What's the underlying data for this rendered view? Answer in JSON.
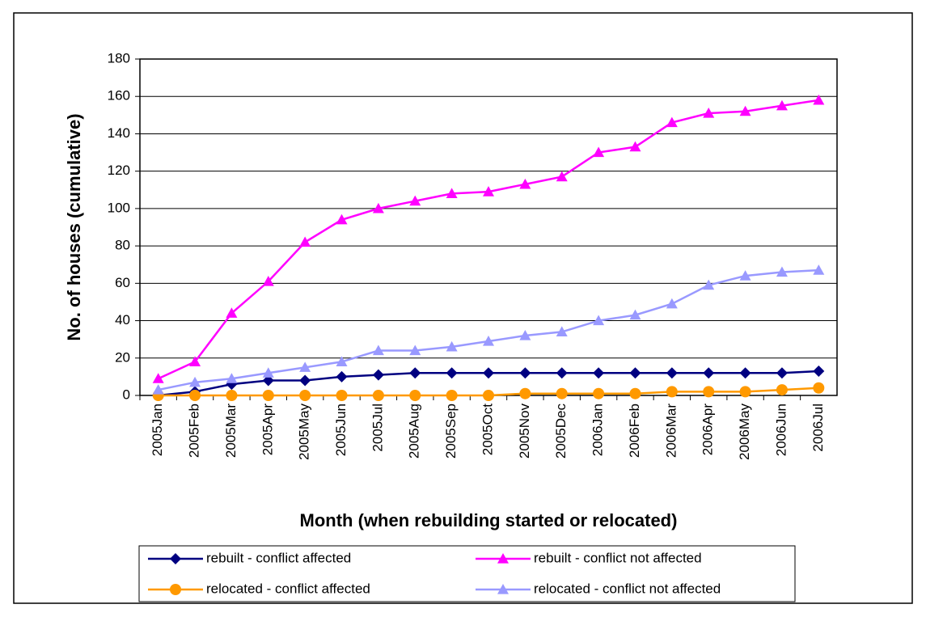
{
  "chart_data": {
    "type": "line",
    "x_label": "Month (when rebuilding started or relocated)",
    "y_label": "No. of houses (cumulative)",
    "categories": [
      "2005Jan",
      "2005Feb",
      "2005Mar",
      "2005Apr",
      "2005May",
      "2005Jun",
      "2005Jul",
      "2005Aug",
      "2005Sep",
      "2005Oct",
      "2005Nov",
      "2005Dec",
      "2006Jan",
      "2006Feb",
      "2006Mar",
      "2006Apr",
      "2006May",
      "2006Jun",
      "2006Jul"
    ],
    "series": [
      {
        "name": "rebuilt - conflict affected",
        "color": "#000080",
        "marker": "diamond",
        "values": [
          0,
          2,
          6,
          8,
          8,
          10,
          11,
          12,
          12,
          12,
          12,
          12,
          12,
          12,
          12,
          12,
          12,
          12,
          13
        ]
      },
      {
        "name": "rebuilt - conflict not affected",
        "color": "#ff00ff",
        "marker": "triangle",
        "values": [
          9,
          18,
          44,
          61,
          82,
          94,
          100,
          104,
          108,
          109,
          113,
          117,
          130,
          133,
          146,
          151,
          152,
          155,
          158
        ]
      },
      {
        "name": "relocated - conflict affected",
        "color": "#ff9900",
        "marker": "circle",
        "values": [
          0,
          0,
          0,
          0,
          0,
          0,
          0,
          0,
          0,
          0,
          1,
          1,
          1,
          1,
          2,
          2,
          2,
          3,
          4
        ]
      },
      {
        "name": "relocated - conflict not affected",
        "color": "#9999ff",
        "marker": "triangle",
        "values": [
          3,
          7,
          9,
          12,
          15,
          18,
          24,
          24,
          26,
          29,
          32,
          34,
          40,
          43,
          49,
          59,
          64,
          66,
          67
        ]
      }
    ],
    "ylim": [
      0,
      180
    ],
    "yticks": [
      0,
      20,
      40,
      60,
      80,
      100,
      120,
      140,
      160,
      180
    ],
    "grid": true,
    "legend": "bottom"
  }
}
